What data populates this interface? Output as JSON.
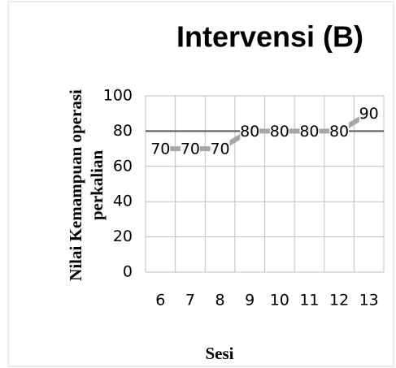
{
  "chart_data": {
    "type": "line",
    "title": "Intervensi (B)",
    "y_label": [
      "Nilai  Kemampuan operasi",
      "perkalian"
    ],
    "x_label": "Sesi",
    "categories": [
      "6",
      "7",
      "8",
      "9",
      "10",
      "11",
      "12",
      "13"
    ],
    "values": [
      70,
      70,
      70,
      80,
      80,
      80,
      80,
      90
    ],
    "color": "#a6a6a6",
    "ylim": [
      0,
      100
    ],
    "yticks": [
      0,
      20,
      40,
      60,
      80,
      100
    ],
    "grid": true,
    "reference_line": 80
  }
}
